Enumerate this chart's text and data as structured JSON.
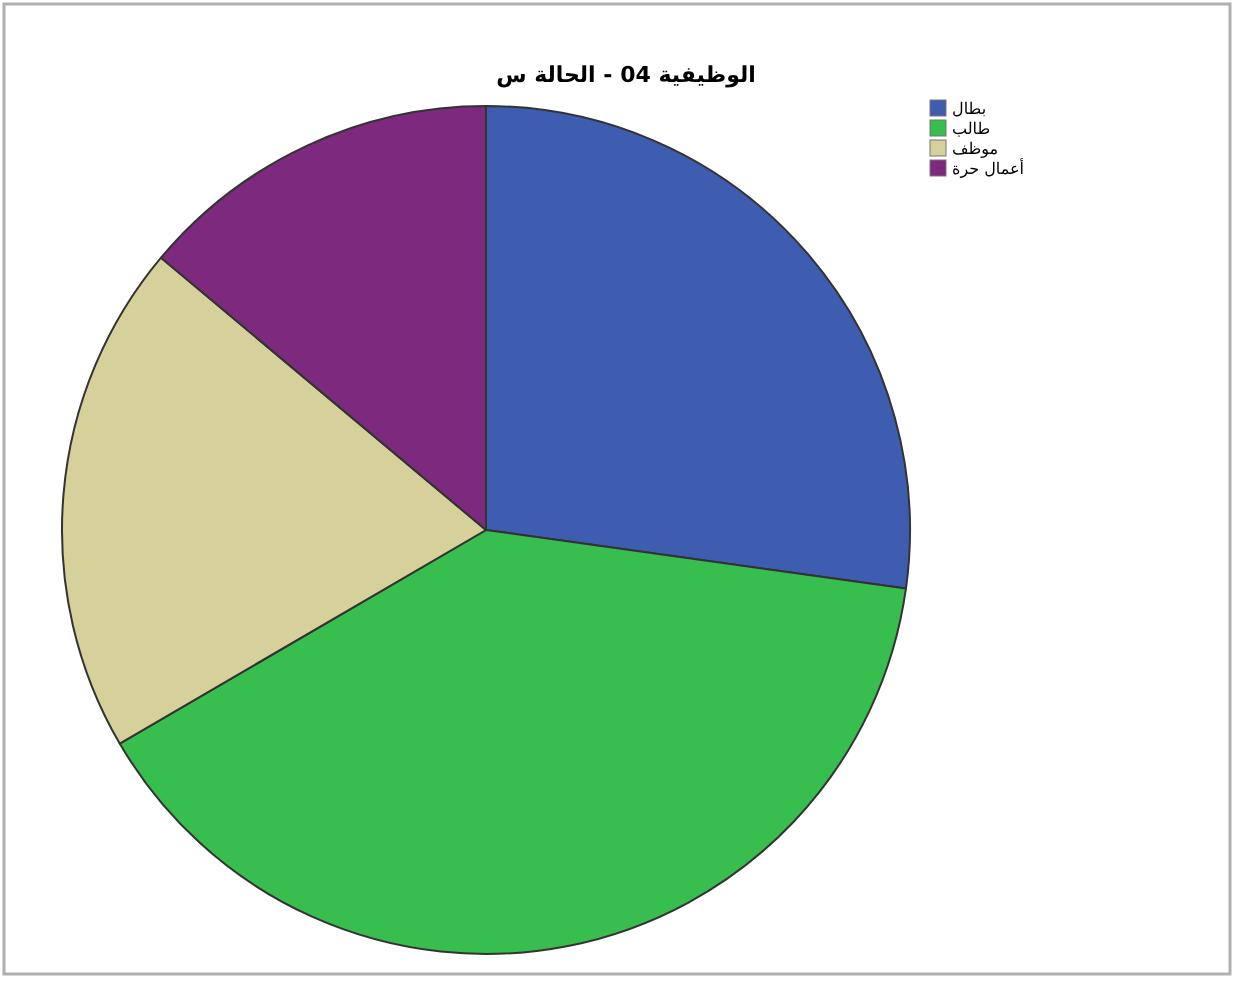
{
  "chart_data": {
    "type": "pie",
    "title": "الوظيفية 04 - الحالة س",
    "categories": [
      "بطال",
      "طالب",
      "موظف",
      "أعمال حرة"
    ],
    "values": [
      27.2,
      39.4,
      19.5,
      13.9
    ],
    "colors": [
      "#3e5cb0",
      "#37be4f",
      "#d6d09a",
      "#7d2a7e"
    ],
    "legend": "top right"
  }
}
